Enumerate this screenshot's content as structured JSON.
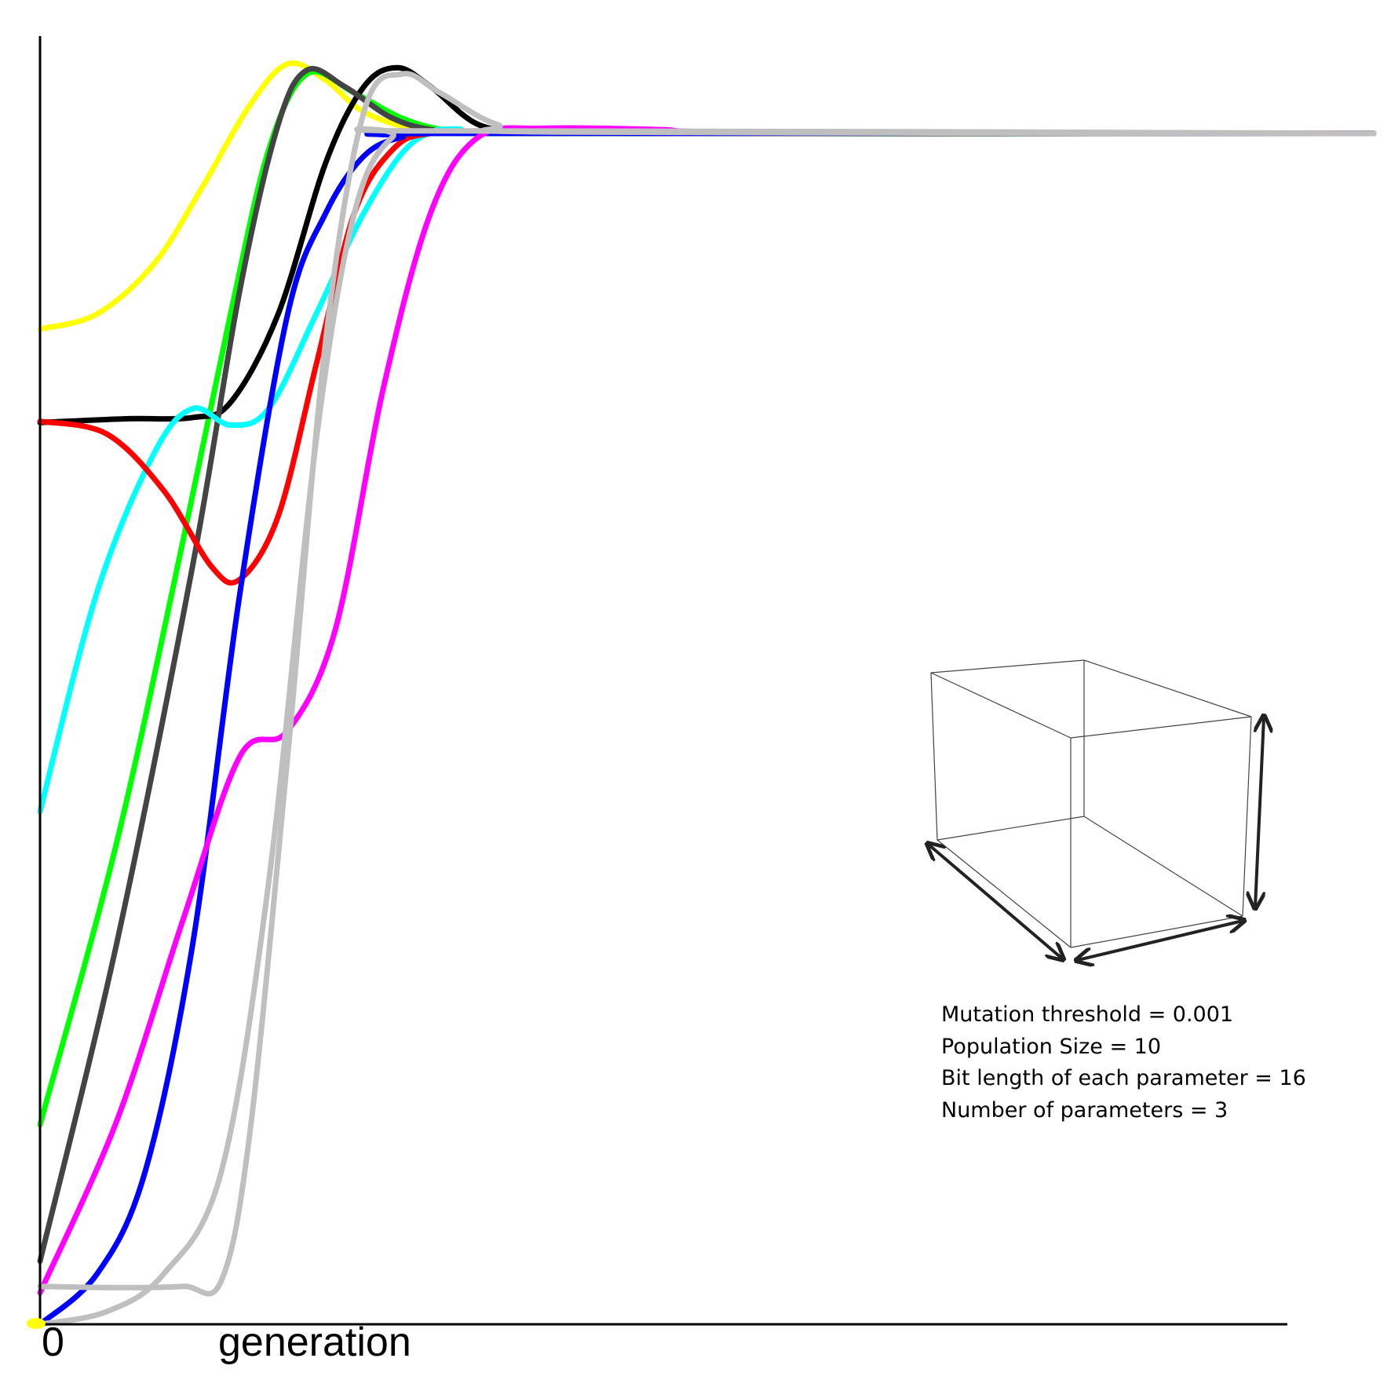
{
  "chart_data": {
    "type": "line",
    "title": "",
    "xlabel": "generation",
    "ylabel": "",
    "x_ticks": [
      "0"
    ],
    "xlim": [
      0,
      14
    ],
    "ylim": [
      0,
      1.02
    ],
    "grid": false,
    "legend": "none",
    "series": [
      {
        "color": "#ffff00",
        "points": [
          [
            0,
            0.788
          ],
          [
            0.6,
            0.8
          ],
          [
            1.2,
            0.84
          ],
          [
            1.7,
            0.9
          ],
          [
            2.2,
            0.965
          ],
          [
            2.6,
            0.998
          ],
          [
            3.0,
            0.985
          ],
          [
            3.4,
            0.96
          ],
          [
            4.0,
            0.946
          ],
          [
            5,
            0.943
          ],
          [
            14,
            0.943
          ]
        ]
      },
      {
        "color": "#00ff00",
        "points": [
          [
            0,
            0.158
          ],
          [
            0.8,
            0.38
          ],
          [
            1.5,
            0.62
          ],
          [
            2.0,
            0.8
          ],
          [
            2.4,
            0.93
          ],
          [
            2.8,
            0.99
          ],
          [
            3.3,
            0.975
          ],
          [
            3.8,
            0.955
          ],
          [
            4.3,
            0.945
          ],
          [
            5,
            0.943
          ],
          [
            14,
            0.943
          ]
        ]
      },
      {
        "color": "#000000",
        "points": [
          [
            0,
            0.714
          ],
          [
            0.9,
            0.717
          ],
          [
            1.6,
            0.718
          ],
          [
            2.0,
            0.73
          ],
          [
            2.5,
            0.8
          ],
          [
            3.0,
            0.92
          ],
          [
            3.4,
            0.98
          ],
          [
            3.75,
            0.995
          ],
          [
            4.1,
            0.98
          ],
          [
            4.6,
            0.95
          ],
          [
            5.2,
            0.944
          ],
          [
            6,
            0.943
          ],
          [
            14,
            0.943
          ]
        ]
      },
      {
        "color": "#444444",
        "points": [
          [
            0,
            0.05
          ],
          [
            0.8,
            0.3
          ],
          [
            1.6,
            0.6
          ],
          [
            2.1,
            0.82
          ],
          [
            2.5,
            0.95
          ],
          [
            2.8,
            0.993
          ],
          [
            3.2,
            0.98
          ],
          [
            3.7,
            0.955
          ],
          [
            4.2,
            0.945
          ],
          [
            5,
            0.943
          ],
          [
            14,
            0.943
          ]
        ]
      },
      {
        "color": "#00ffff",
        "points": [
          [
            0,
            0.406
          ],
          [
            0.6,
            0.58
          ],
          [
            1.2,
            0.69
          ],
          [
            1.6,
            0.725
          ],
          [
            2.0,
            0.712
          ],
          [
            2.4,
            0.725
          ],
          [
            2.9,
            0.8
          ],
          [
            3.4,
            0.88
          ],
          [
            3.9,
            0.935
          ],
          [
            4.4,
            0.946
          ],
          [
            5,
            0.944
          ],
          [
            14,
            0.943
          ]
        ]
      },
      {
        "color": "#ff0000",
        "points": [
          [
            0,
            0.715
          ],
          [
            0.7,
            0.705
          ],
          [
            1.3,
            0.66
          ],
          [
            1.8,
            0.6
          ],
          [
            2.1,
            0.59
          ],
          [
            2.5,
            0.64
          ],
          [
            2.9,
            0.76
          ],
          [
            3.3,
            0.88
          ],
          [
            3.7,
            0.93
          ],
          [
            4.1,
            0.943
          ],
          [
            5,
            0.945
          ],
          [
            6,
            0.944
          ],
          [
            14,
            0.943
          ]
        ]
      },
      {
        "color": "#0000ff",
        "points": [
          [
            0,
            0.0
          ],
          [
            0.6,
            0.04
          ],
          [
            1.1,
            0.12
          ],
          [
            1.6,
            0.3
          ],
          [
            2.1,
            0.58
          ],
          [
            2.6,
            0.8
          ],
          [
            3.0,
            0.88
          ],
          [
            3.4,
            0.925
          ],
          [
            3.8,
            0.94
          ],
          [
            4.3,
            0.943
          ],
          [
            14,
            0.943
          ]
        ]
      },
      {
        "color": "#ff00ff",
        "points": [
          [
            0,
            0.025
          ],
          [
            0.8,
            0.16
          ],
          [
            1.5,
            0.32
          ],
          [
            2.1,
            0.45
          ],
          [
            2.6,
            0.47
          ],
          [
            3.1,
            0.55
          ],
          [
            3.6,
            0.74
          ],
          [
            4.1,
            0.88
          ],
          [
            4.6,
            0.94
          ],
          [
            5.3,
            0.947
          ],
          [
            6.5,
            0.946
          ],
          [
            7.5,
            0.944
          ],
          [
            14,
            0.943
          ]
        ]
      },
      {
        "color": "#bfbfbf",
        "points": [
          [
            0,
            0.0
          ],
          [
            0.7,
            0.01
          ],
          [
            1.3,
            0.04
          ],
          [
            1.9,
            0.12
          ],
          [
            2.4,
            0.35
          ],
          [
            2.9,
            0.7
          ],
          [
            3.3,
            0.88
          ],
          [
            3.7,
            0.94
          ],
          [
            4.2,
            0.945
          ],
          [
            14,
            0.943
          ]
        ]
      },
      {
        "color": "#bfbfbf",
        "points": [
          [
            0,
            0.03
          ],
          [
            0.8,
            0.029
          ],
          [
            1.5,
            0.03
          ],
          [
            1.9,
            0.034
          ],
          [
            2.2,
            0.15
          ],
          [
            2.6,
            0.45
          ],
          [
            3.0,
            0.78
          ],
          [
            3.4,
            0.96
          ],
          [
            3.8,
            0.99
          ],
          [
            4.2,
            0.975
          ],
          [
            4.8,
            0.95
          ],
          [
            5.5,
            0.944
          ],
          [
            14,
            0.943
          ]
        ]
      }
    ]
  },
  "notes": [
    "Mutation threshold = 0.001",
    "Population Size = 10",
    "Bit length of each parameter = 16",
    "Number of parameters = 3"
  ],
  "colors": {
    "axis": "#000000",
    "box_edges": "#444444",
    "arrows": "#222222"
  }
}
